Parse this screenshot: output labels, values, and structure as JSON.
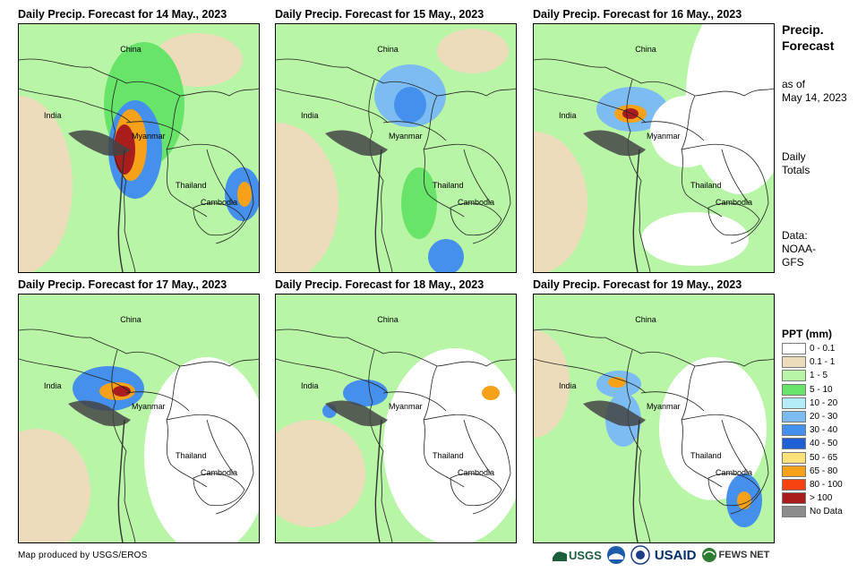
{
  "panels": [
    {
      "title": "Daily Precip. Forecast for 14 May., 2023"
    },
    {
      "title": "Daily Precip. Forecast for 15 May., 2023"
    },
    {
      "title": "Daily Precip. Forecast for 16 May., 2023"
    },
    {
      "title": "Daily Precip. Forecast for 17 May., 2023"
    },
    {
      "title": "Daily Precip. Forecast for 18 May., 2023"
    },
    {
      "title": "Daily Precip. Forecast for 19 May., 2023"
    }
  ],
  "map_labels": {
    "china": "China",
    "india": "India",
    "myanmar": "Myanmar",
    "thailand": "Thailand",
    "cambodia": "Cambodia"
  },
  "sidebar": {
    "title_line1": "Precip.",
    "title_line2": "Forecast",
    "asof_line1": "as of",
    "asof_line2": "May 14, 2023",
    "totals_line1": "Daily",
    "totals_line2": "Totals",
    "data_line1": "Data:",
    "data_line2": "NOAA-",
    "data_line3": "GFS"
  },
  "legend": {
    "title": "PPT (mm)",
    "items": [
      {
        "label": "0 - 0.1",
        "color": "#ffffff"
      },
      {
        "label": "0.1 - 1",
        "color": "#ecdcbc"
      },
      {
        "label": "1 - 5",
        "color": "#b8f5a6"
      },
      {
        "label": "5 - 10",
        "color": "#68e46a"
      },
      {
        "label": "10 - 20",
        "color": "#b4ecf7"
      },
      {
        "label": "20 - 30",
        "color": "#7cbcf2"
      },
      {
        "label": "30 - 40",
        "color": "#4590ec"
      },
      {
        "label": "40 - 50",
        "color": "#1e5fd6"
      },
      {
        "label": "50 - 65",
        "color": "#fde27c"
      },
      {
        "label": "65 - 80",
        "color": "#f6a117"
      },
      {
        "label": "80 - 100",
        "color": "#f5420f"
      },
      {
        "label": "> 100",
        "color": "#a91d1d"
      },
      {
        "label": "No Data",
        "color": "#8c8c8c"
      }
    ]
  },
  "footer": {
    "credit": "Map produced by USGS/EROS",
    "logo_usgs": "USGS",
    "logo_usaid": "USAID",
    "logo_fews": "FEWS NET"
  }
}
